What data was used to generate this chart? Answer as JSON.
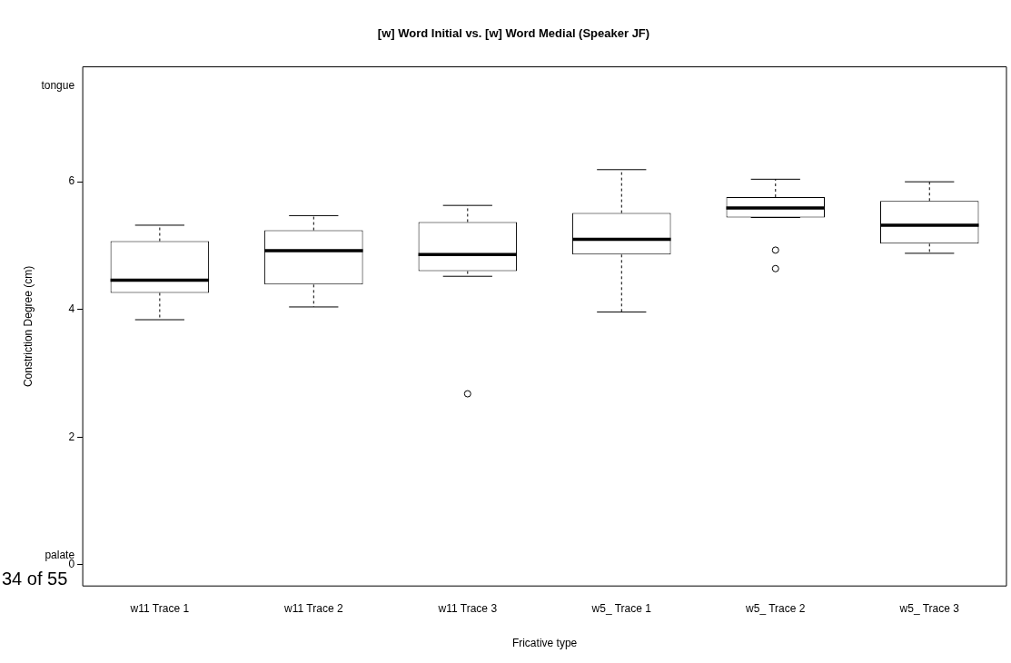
{
  "chart_data": {
    "type": "box",
    "title": "[w] Word Initial vs. [w] Word Medial (Speaker JF)",
    "xlabel": "Fricative type",
    "ylabel": "Constriction Degree (cm)",
    "categories": [
      "w11 Trace 1",
      "w11 Trace 2",
      "w11 Trace 3",
      "w5_ Trace 1",
      "w5_ Trace 2",
      "w5_ Trace 3"
    ],
    "boxes": [
      {
        "low": 3.84,
        "q1": 4.26,
        "median": 4.46,
        "q3": 5.07,
        "high": 5.32
      },
      {
        "low": 4.04,
        "q1": 4.39,
        "median": 4.92,
        "q3": 5.24,
        "high": 5.47
      },
      {
        "low": 4.52,
        "q1": 4.6,
        "median": 4.86,
        "q3": 5.37,
        "high": 5.63,
        "outliers": [
          2.68
        ]
      },
      {
        "low": 3.96,
        "q1": 4.86,
        "median": 5.1,
        "q3": 5.51,
        "high": 6.19
      },
      {
        "low": 5.44,
        "q1": 5.44,
        "median": 5.59,
        "q3": 5.76,
        "high": 6.04,
        "outliers": [
          4.93,
          4.64
        ]
      },
      {
        "low": 4.88,
        "q1": 5.03,
        "median": 5.32,
        "q3": 5.7,
        "high": 6.0
      }
    ],
    "ylim": [
      -0.33,
      7.8
    ],
    "yticks": [
      0,
      {
        "value": 0.15,
        "label": "palate"
      },
      2,
      4,
      6,
      {
        "value": 7.5,
        "label": "tongue"
      }
    ],
    "annotations": [
      "34 of 55"
    ]
  }
}
